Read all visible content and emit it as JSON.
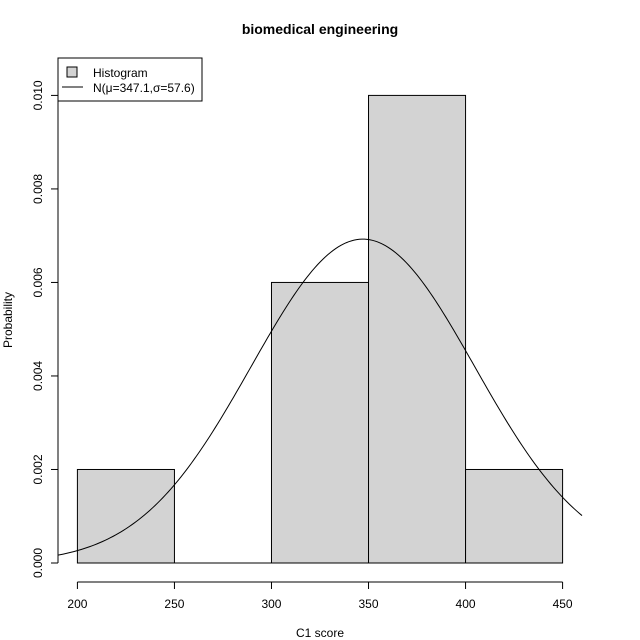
{
  "chart_data": {
    "type": "bar",
    "title": "biomedical engineering",
    "xlabel": "C1 score",
    "ylabel": "Probability",
    "bins": [
      {
        "start": 200,
        "end": 250,
        "density": 0.002
      },
      {
        "start": 250,
        "end": 300,
        "density": 0.0
      },
      {
        "start": 300,
        "end": 350,
        "density": 0.006
      },
      {
        "start": 350,
        "end": 400,
        "density": 0.01
      },
      {
        "start": 400,
        "end": 450,
        "density": 0.002
      }
    ],
    "normal_curve": {
      "mu": 347.1,
      "sigma": 57.6,
      "x_range": [
        190,
        460
      ]
    },
    "xlim": [
      190,
      460
    ],
    "ylim": [
      0,
      0.0108
    ],
    "x_ticks": [
      200,
      250,
      300,
      350,
      400,
      450
    ],
    "x_tick_labels": [
      "200",
      "250",
      "300",
      "350",
      "400",
      "450"
    ],
    "y_ticks": [
      0.0,
      0.002,
      0.004,
      0.006,
      0.008,
      0.01
    ],
    "y_tick_labels": [
      "0.000",
      "0.002",
      "0.004",
      "0.006",
      "0.008",
      "0.010"
    ],
    "grid": false,
    "legend": {
      "position": "top-left",
      "entries": [
        "Histogram",
        "N(μ=347.1,σ=57.6)"
      ]
    },
    "colors": {
      "bar_fill": "#d3d3d3",
      "bar_stroke": "#000000",
      "curve": "#000000"
    }
  }
}
